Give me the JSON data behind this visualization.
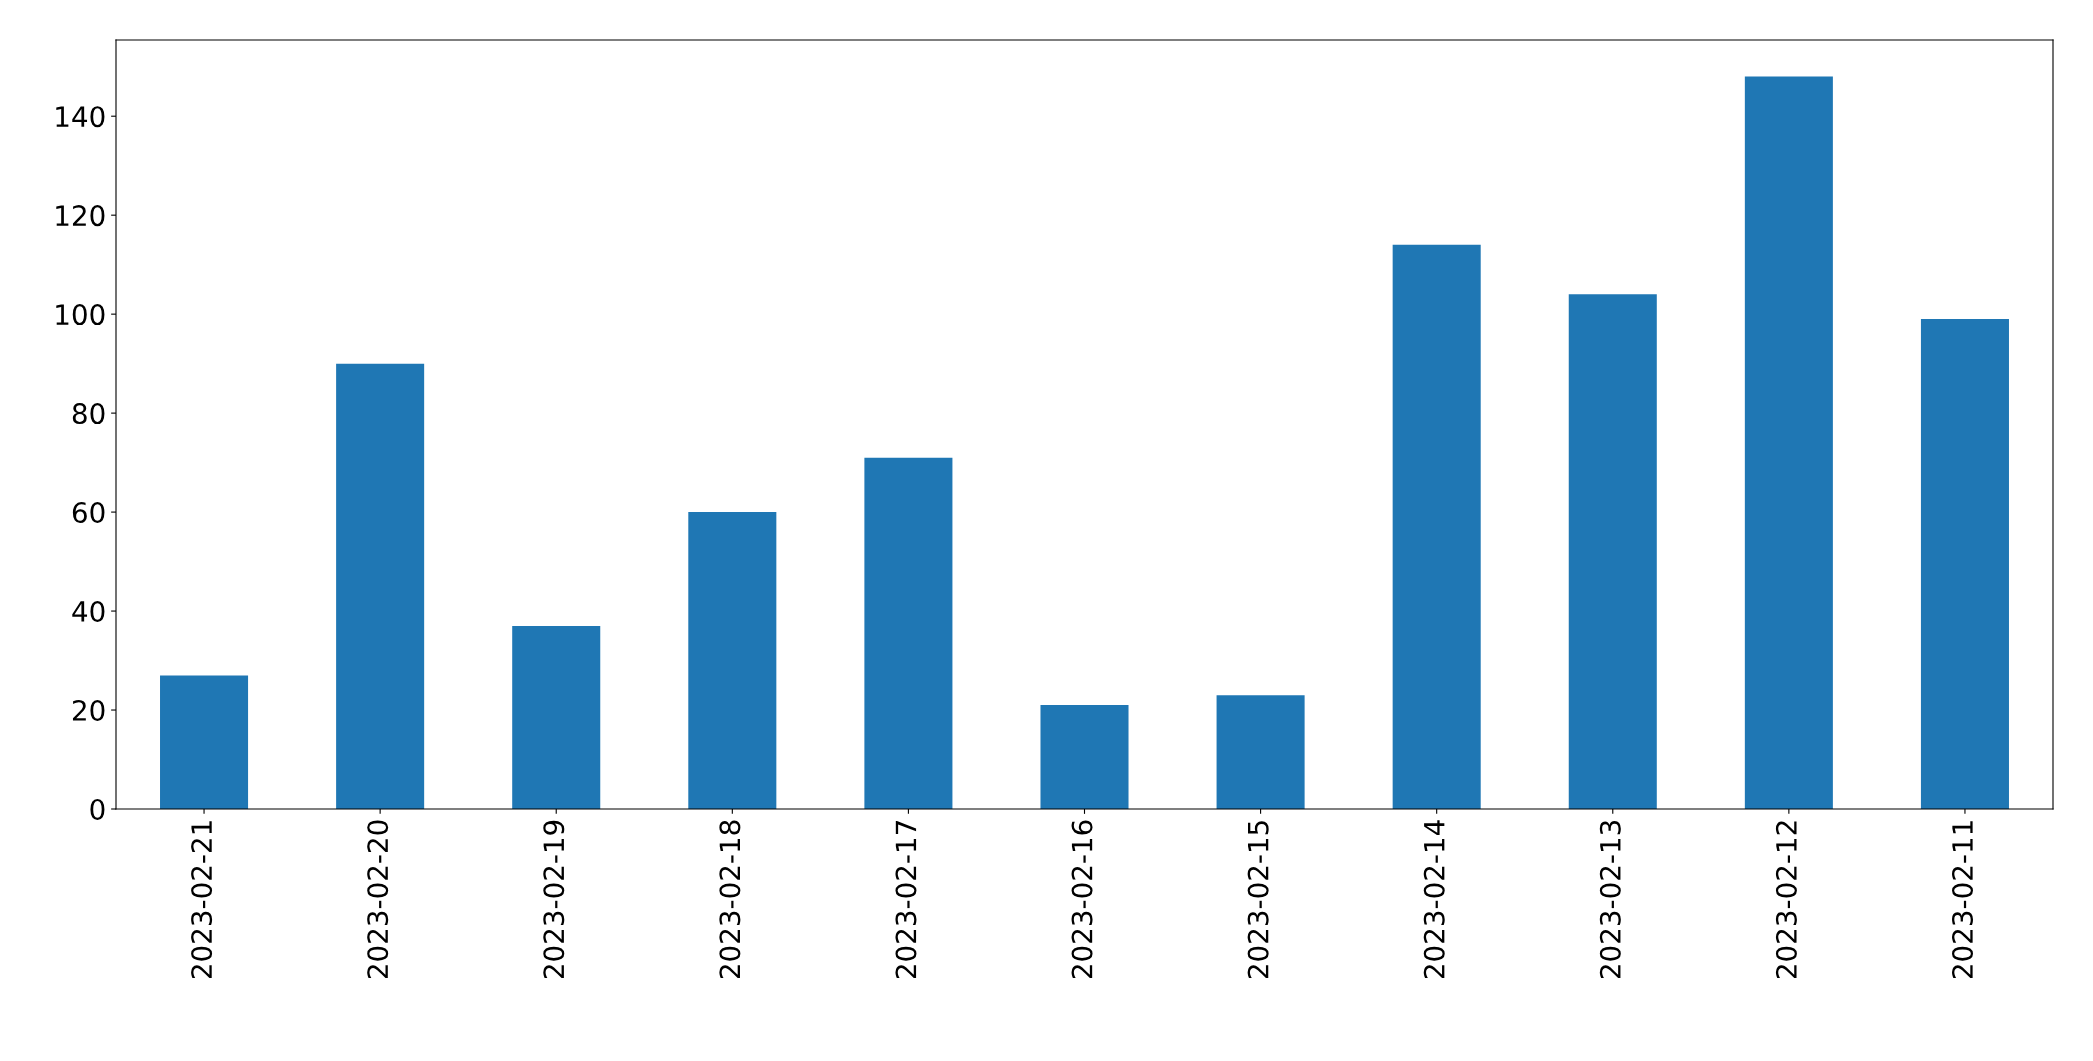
{
  "chart_data": {
    "type": "bar",
    "categories": [
      "2023-02-21",
      "2023-02-20",
      "2023-02-19",
      "2023-02-18",
      "2023-02-17",
      "2023-02-16",
      "2023-02-15",
      "2023-02-14",
      "2023-02-13",
      "2023-02-12",
      "2023-02-11"
    ],
    "values": [
      27,
      90,
      37,
      60,
      71,
      21,
      23,
      114,
      104,
      148,
      99
    ],
    "color": "#1f77b4",
    "ylim": [
      0,
      155.4
    ],
    "yticks": [
      0,
      20,
      40,
      60,
      80,
      100,
      120,
      140
    ],
    "grid": false,
    "legend": false
  }
}
